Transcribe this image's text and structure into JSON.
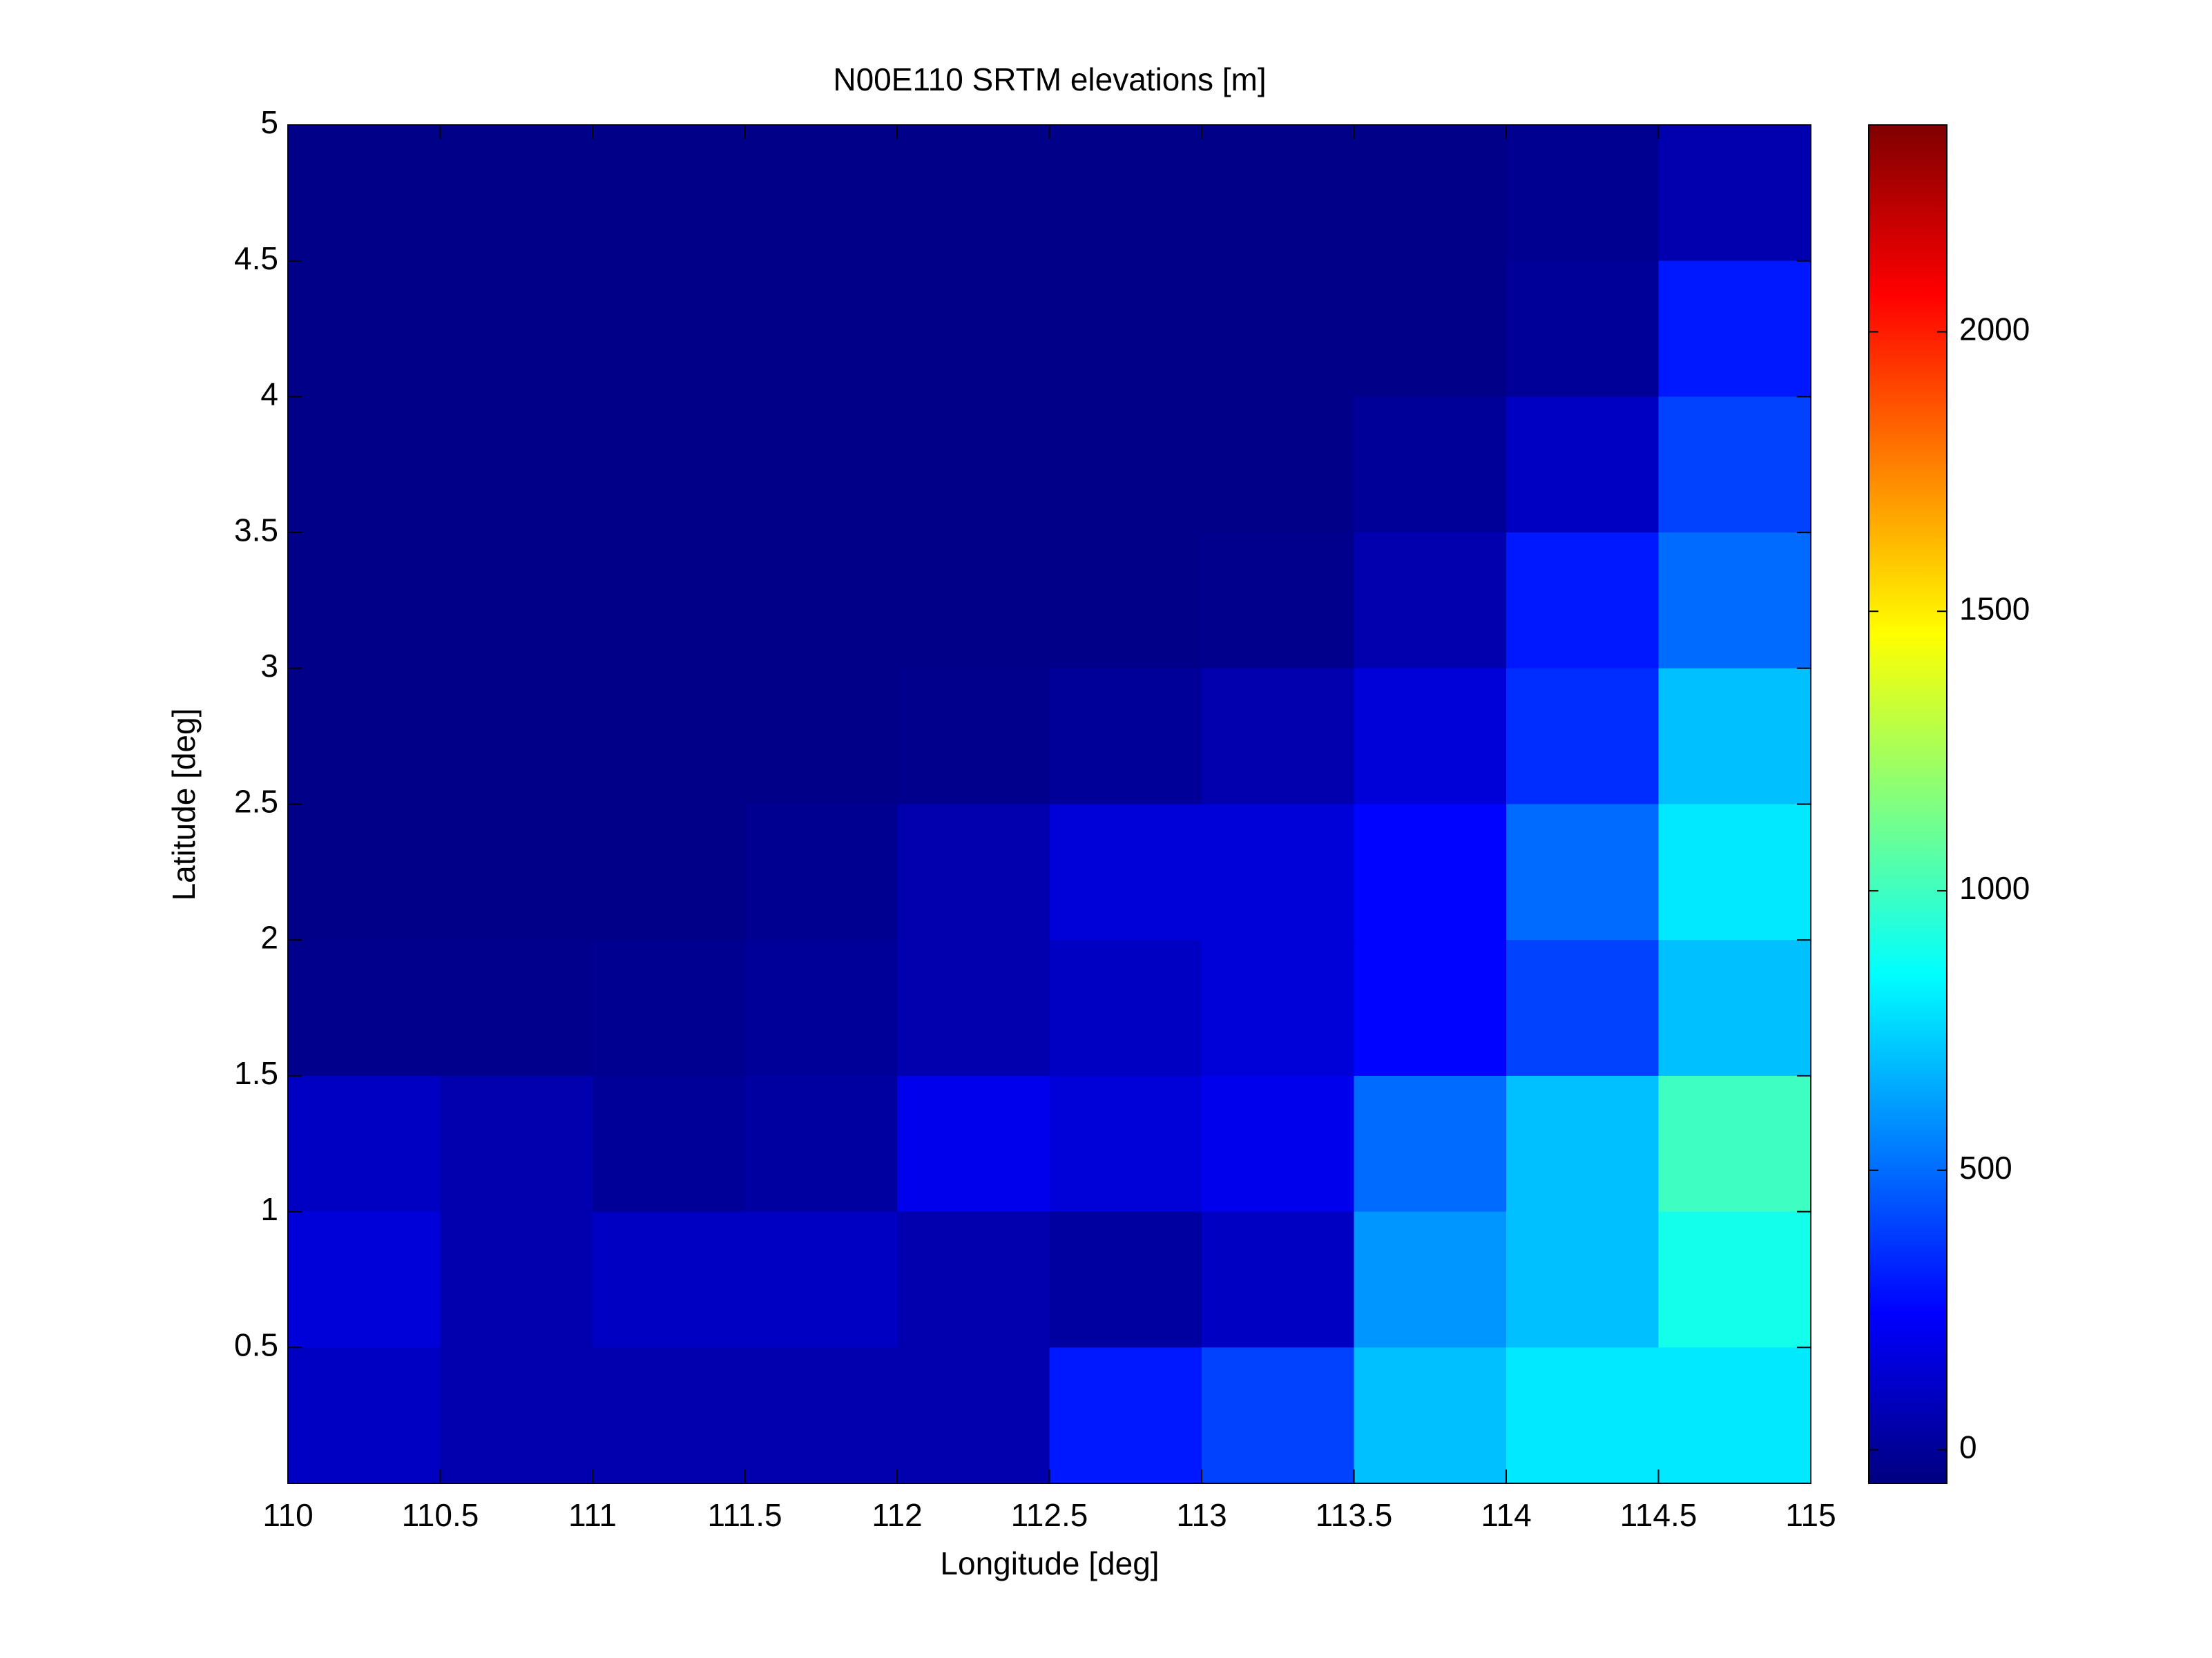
{
  "chart_data": {
    "type": "heatmap",
    "title": "N00E110 SRTM elevations [m]",
    "x_label": "Longitude [deg]",
    "y_label": "Latitude [deg]",
    "x": [
      110.25,
      110.75,
      111.25,
      111.75,
      112.25,
      112.75,
      113.25,
      113.75,
      114.25,
      114.75
    ],
    "y": [
      4.75,
      4.25,
      3.75,
      3.25,
      2.75,
      2.25,
      1.75,
      1.25,
      0.75,
      0.25
    ],
    "z": [
      [
        -40,
        -40,
        -40,
        -40,
        -40,
        -40,
        -40,
        -40,
        -20,
        50
      ],
      [
        -40,
        -40,
        -40,
        -40,
        -40,
        -40,
        -40,
        -40,
        0,
        300
      ],
      [
        -40,
        -40,
        -40,
        -40,
        -40,
        -40,
        -40,
        0,
        100,
        400
      ],
      [
        -40,
        -40,
        -40,
        -40,
        -40,
        -40,
        -30,
        50,
        300,
        500
      ],
      [
        -40,
        -40,
        -40,
        -40,
        -30,
        0,
        50,
        150,
        350,
        700
      ],
      [
        -40,
        -40,
        -40,
        -20,
        50,
        150,
        150,
        250,
        500,
        800
      ],
      [
        -30,
        -30,
        -20,
        0,
        50,
        100,
        150,
        250,
        400,
        700
      ],
      [
        100,
        50,
        0,
        20,
        200,
        150,
        200,
        500,
        700,
        1000
      ],
      [
        150,
        50,
        100,
        100,
        50,
        20,
        100,
        600,
        700,
        900
      ],
      [
        100,
        50,
        50,
        50,
        50,
        300,
        400,
        700,
        800,
        800
      ]
    ],
    "colormap": "jet",
    "xlim": [
      110,
      115
    ],
    "xticks": [
      110,
      110.5,
      111,
      111.5,
      112,
      112.5,
      113,
      113.5,
      114,
      114.5,
      115
    ],
    "ylim": [
      0,
      5
    ],
    "yticks": [
      0.5,
      1,
      1.5,
      2,
      2.5,
      3,
      3.5,
      4,
      4.5,
      5
    ],
    "clim": [
      -60,
      2370
    ],
    "cticks": [
      0,
      500,
      1000,
      1500,
      2000
    ]
  }
}
